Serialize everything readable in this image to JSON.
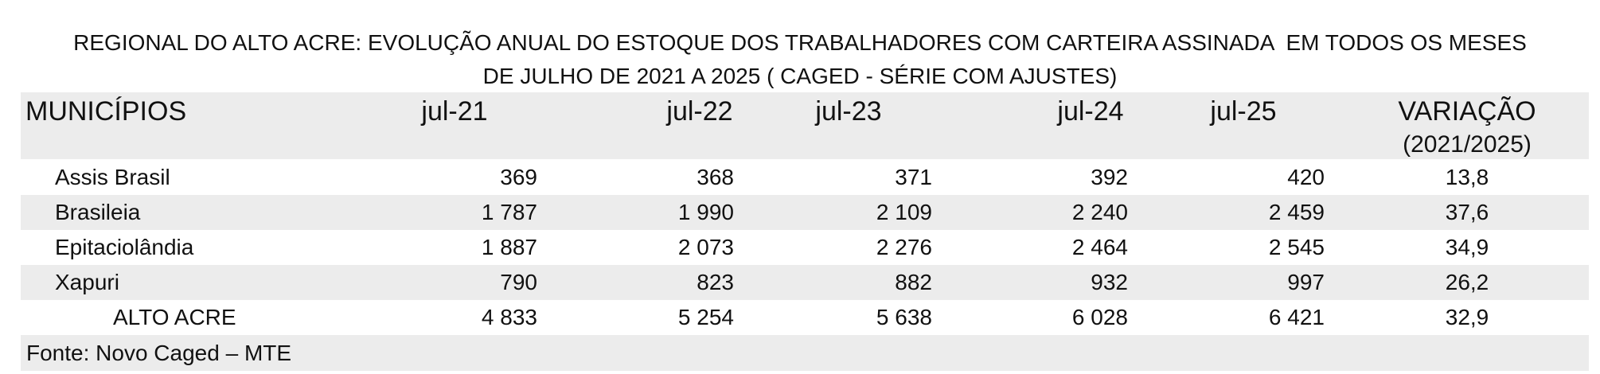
{
  "title_lines": [
    "REGIONAL DO ALTO ACRE: EVOLUÇÃO ANUAL DO ESTOQUE DOS TRABALHADORES COM CARTEIRA ASSINADA  EM TODOS OS MESES",
    "DE JULHO DE 2021 A 2025 ( CAGED - SÉRIE COM AJUSTES)"
  ],
  "table": {
    "header": [
      "MUNICÍPIOS",
      "jul-21",
      "jul-22",
      "jul-23",
      "jul-24",
      "jul-25",
      [
        "VARIAÇÃO",
        "(2021/2025)"
      ]
    ],
    "rows": [
      [
        "Assis Brasil",
        "369",
        "368",
        "371",
        "392",
        "420",
        "13,8"
      ],
      [
        "Brasileia",
        "1 787",
        "1 990",
        "2 109",
        "2 240",
        "2 459",
        "37,6"
      ],
      [
        "Epitaciolândia",
        "1 887",
        "2 073",
        "2 276",
        "2 464",
        "2 545",
        "34,9"
      ],
      [
        "Xapuri",
        "790",
        "823",
        "882",
        "932",
        "997",
        "26,2"
      ],
      [
        "ALTO ACRE",
        "4 833",
        "5 254",
        "5 638",
        "6 028",
        "6 421",
        "32,9"
      ]
    ]
  },
  "source": "Fonte: Novo Caged – MTE"
}
